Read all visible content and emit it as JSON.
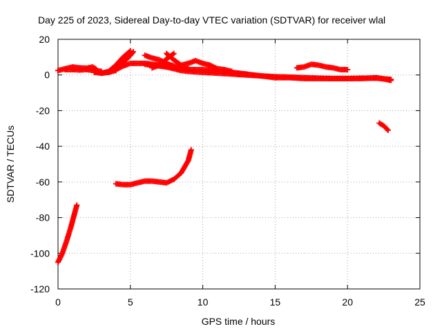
{
  "chart_data": {
    "type": "scatter",
    "title": "Day 225 of 2023, Sidereal Day-to-day VTEC variation (SDTVAR) for receiver wlal",
    "xlabel": "GPS time / hours",
    "ylabel": "SDTVAR / TECUs",
    "xlim": [
      0,
      25
    ],
    "ylim": [
      -120,
      20
    ],
    "xticks": [
      0,
      5,
      10,
      15,
      20,
      25
    ],
    "yticks": [
      -120,
      -100,
      -80,
      -60,
      -40,
      -20,
      0,
      20
    ],
    "xtick_labels": [
      "0",
      "5",
      "10",
      "15",
      "20",
      "25"
    ],
    "ytick_labels": [
      "-120",
      "-100",
      "-80",
      "-60",
      "-40",
      "-20",
      "0",
      "20"
    ],
    "grid": true,
    "grid_style": "dotted",
    "legend": "none",
    "marker": "plus",
    "series_color": "#ff0000",
    "series": [
      {
        "points": [
          [
            0.0,
            2.5
          ],
          [
            0.5,
            3.5
          ],
          [
            1.0,
            4.5
          ],
          [
            1.5,
            4.0
          ],
          [
            2.0,
            3.8
          ],
          [
            2.4,
            4.5
          ],
          [
            2.6,
            3.5
          ],
          [
            2.8,
            1.5
          ],
          [
            3.0,
            1.0
          ],
          [
            3.5,
            1.5
          ],
          [
            4.0,
            2.5
          ]
        ]
      },
      {
        "points": [
          [
            0.5,
            3.0
          ],
          [
            1.0,
            3.0
          ],
          [
            1.5,
            2.8
          ],
          [
            2.0,
            3.0
          ],
          [
            2.5,
            2.5
          ],
          [
            3.0,
            2.0
          ]
        ]
      },
      {
        "points": [
          [
            2.5,
            1.5
          ],
          [
            3.0,
            1.0
          ],
          [
            3.5,
            2.0
          ],
          [
            4.0,
            5.5
          ],
          [
            4.5,
            10.0
          ],
          [
            5.0,
            13.5
          ]
        ]
      },
      {
        "points": [
          [
            3.5,
            1.5
          ],
          [
            4.0,
            3.5
          ],
          [
            4.5,
            7.0
          ],
          [
            5.0,
            11.0
          ],
          [
            5.2,
            13.0
          ]
        ]
      },
      {
        "points": [
          [
            4.0,
            3.0
          ],
          [
            4.5,
            5.0
          ],
          [
            5.0,
            6.5
          ],
          [
            5.5,
            6.5
          ],
          [
            6.0,
            6.5
          ],
          [
            6.5,
            6.0
          ],
          [
            7.0,
            5.5
          ],
          [
            7.5,
            4.5
          ],
          [
            8.0,
            3.5
          ],
          [
            8.5,
            2.5
          ],
          [
            9.0,
            2.0
          ],
          [
            10.0,
            1.5
          ],
          [
            11.0,
            1.0
          ],
          [
            12.0,
            0.5
          ],
          [
            13.0,
            0.0
          ],
          [
            14.0,
            -0.5
          ],
          [
            15.0,
            -1.0
          ],
          [
            16.0,
            -1.2
          ],
          [
            17.0,
            -1.5
          ],
          [
            18.0,
            -1.8
          ],
          [
            19.0,
            -2.0
          ],
          [
            20.0,
            -2.0
          ],
          [
            21.0,
            -1.8
          ],
          [
            22.0,
            -1.8
          ],
          [
            23.0,
            -2.5
          ]
        ]
      },
      {
        "points": [
          [
            6.0,
            11.0
          ],
          [
            6.5,
            9.5
          ],
          [
            7.0,
            8.5
          ],
          [
            7.5,
            6.5
          ],
          [
            8.0,
            5.0
          ],
          [
            8.5,
            4.0
          ],
          [
            9.0,
            3.5
          ]
        ]
      },
      {
        "points": [
          [
            6.5,
            4.0
          ],
          [
            7.0,
            5.5
          ],
          [
            7.5,
            9.0
          ],
          [
            8.0,
            12.0
          ]
        ]
      },
      {
        "points": [
          [
            7.5,
            12.0
          ],
          [
            8.0,
            8.5
          ],
          [
            8.5,
            5.5
          ],
          [
            9.0,
            6.5
          ],
          [
            9.5,
            8.0
          ],
          [
            10.0,
            6.5
          ],
          [
            10.5,
            5.5
          ],
          [
            11.0,
            3.5
          ],
          [
            11.5,
            3.0
          ],
          [
            12.0,
            2.0
          ]
        ]
      },
      {
        "points": [
          [
            6.0,
            6.0
          ],
          [
            7.0,
            5.0
          ],
          [
            8.0,
            4.0
          ],
          [
            9.0,
            3.0
          ],
          [
            10.0,
            3.0
          ],
          [
            11.0,
            2.5
          ],
          [
            12.0,
            1.5
          ],
          [
            13.0,
            0.5
          ]
        ]
      },
      {
        "points": [
          [
            12.0,
            1.0
          ],
          [
            13.0,
            0.5
          ],
          [
            14.0,
            -0.5
          ],
          [
            15.0,
            -1.5
          ],
          [
            16.0,
            -1.5
          ],
          [
            17.0,
            -2.0
          ],
          [
            18.0,
            -2.0
          ],
          [
            19.0,
            -2.0
          ],
          [
            20.0,
            -2.0
          ],
          [
            21.0,
            -2.0
          ],
          [
            22.0,
            -1.5
          ],
          [
            23.0,
            -3.0
          ]
        ]
      },
      {
        "points": [
          [
            16.5,
            4.0
          ],
          [
            17.0,
            4.5
          ],
          [
            17.5,
            6.0
          ],
          [
            18.0,
            5.5
          ],
          [
            18.5,
            4.5
          ],
          [
            19.0,
            4.0
          ],
          [
            19.5,
            3.0
          ],
          [
            20.0,
            3.0
          ]
        ]
      },
      {
        "points": [
          [
            22.2,
            -27.0
          ],
          [
            22.5,
            -28.5
          ],
          [
            22.8,
            -31.0
          ]
        ]
      },
      {
        "points": [
          [
            4.0,
            -61.0
          ],
          [
            4.5,
            -61.5
          ],
          [
            5.0,
            -61.5
          ],
          [
            5.5,
            -60.5
          ],
          [
            6.0,
            -59.5
          ],
          [
            6.5,
            -59.5
          ],
          [
            7.0,
            -60.0
          ],
          [
            7.5,
            -60.5
          ],
          [
            8.0,
            -58.5
          ],
          [
            8.5,
            -55.0
          ],
          [
            9.0,
            -48.0
          ],
          [
            9.2,
            -42.0
          ]
        ]
      },
      {
        "points": [
          [
            0.0,
            -105.0
          ],
          [
            0.3,
            -100.0
          ],
          [
            0.6,
            -93.0
          ],
          [
            0.9,
            -85.0
          ],
          [
            1.2,
            -76.0
          ],
          [
            1.3,
            -73.0
          ]
        ]
      }
    ]
  }
}
